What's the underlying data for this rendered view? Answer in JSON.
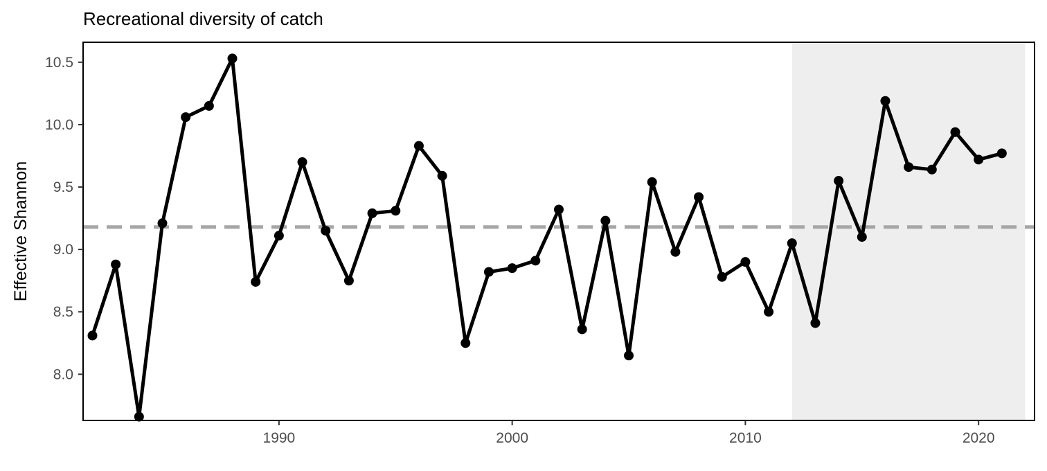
{
  "chart_data": {
    "type": "line",
    "title": "Recreational diversity of catch",
    "xlabel": "",
    "ylabel": "Effective Shannon",
    "xlim": [
      1981.6,
      2022.4
    ],
    "ylim": [
      7.63,
      10.66
    ],
    "x_ticks": [
      1990,
      2000,
      2010,
      2020
    ],
    "y_ticks": [
      8.0,
      8.5,
      9.0,
      9.5,
      10.0,
      10.5
    ],
    "y_tick_labels": [
      "8.0",
      "8.5",
      "9.0",
      "9.5",
      "10.0",
      "10.5"
    ],
    "grid": false,
    "reference_line": {
      "y": 9.18,
      "style": "dashed",
      "color": "#a6a6a6"
    },
    "shaded_region": {
      "x": [
        2012,
        2022
      ],
      "color": "#eeeeee"
    },
    "series": [
      {
        "color": "#000000",
        "x": [
          1982,
          1983,
          1984,
          1985,
          1986,
          1987,
          1988,
          1989,
          1990,
          1991,
          1992,
          1993,
          1994,
          1995,
          1996,
          1997,
          1998,
          1999,
          2000,
          2001,
          2002,
          2003,
          2004,
          2005,
          2006,
          2007,
          2008,
          2009,
          2010,
          2011,
          2012,
          2013,
          2014,
          2015,
          2016,
          2017,
          2018,
          2019,
          2020,
          2021
        ],
        "values": [
          8.31,
          8.88,
          7.66,
          9.21,
          10.06,
          10.15,
          10.53,
          8.74,
          9.11,
          9.7,
          9.15,
          8.75,
          9.29,
          9.31,
          9.83,
          9.59,
          8.25,
          8.82,
          8.85,
          8.91,
          9.32,
          8.36,
          9.23,
          8.15,
          9.54,
          8.98,
          9.42,
          8.78,
          8.9,
          8.5,
          9.05,
          8.41,
          9.55,
          9.1,
          10.19,
          9.66,
          9.64,
          9.94,
          9.72,
          9.77
        ]
      }
    ]
  }
}
